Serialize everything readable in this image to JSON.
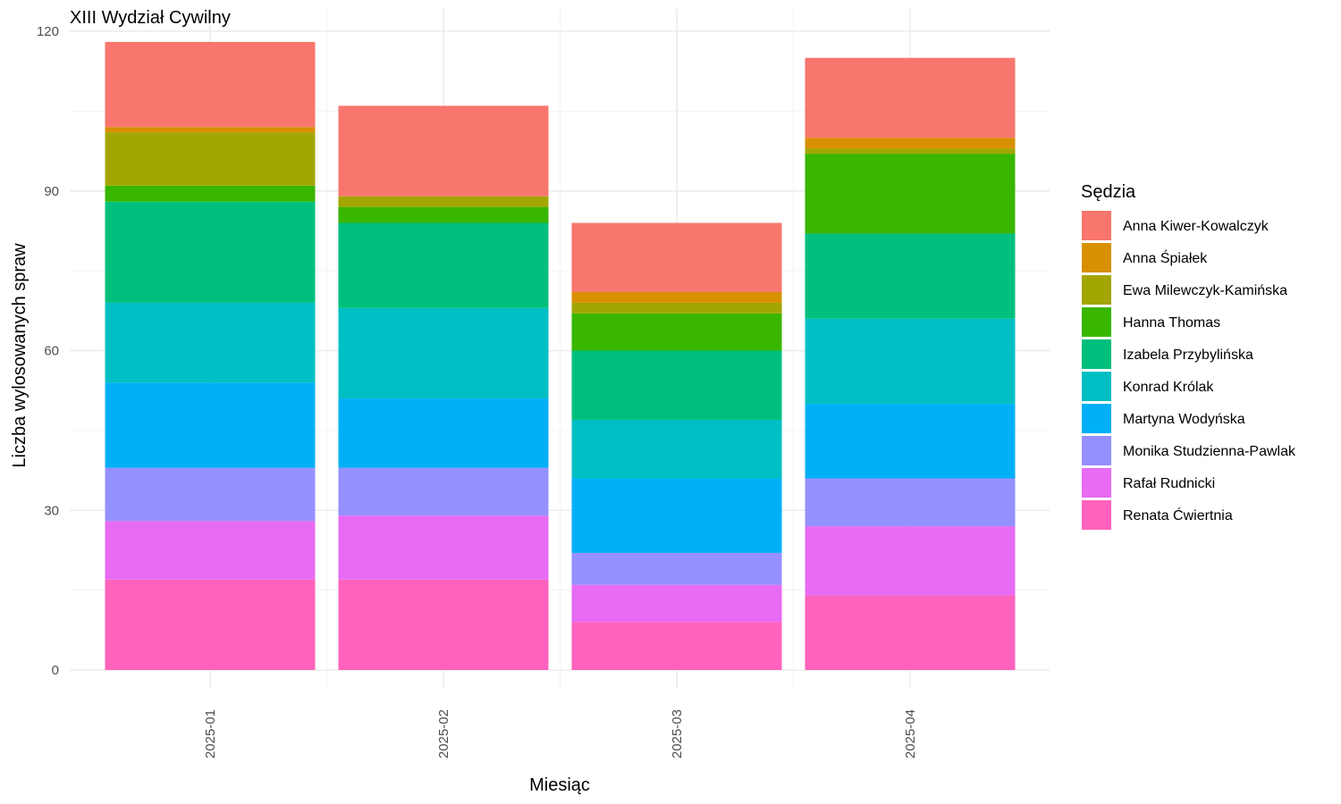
{
  "chart_data": {
    "type": "bar",
    "stacked": true,
    "title": "XIII Wydział Cywilny",
    "xlabel": "Miesiąc",
    "ylabel": "Liczba wylosowanych spraw",
    "ylim": [
      0,
      120
    ],
    "yticks": [
      0,
      30,
      60,
      90,
      120
    ],
    "grid": true,
    "legend_title": "Sędzia",
    "legend_position": "right",
    "categories": [
      "2025-01",
      "2025-02",
      "2025-03",
      "2025-04"
    ],
    "series": [
      {
        "name": "Anna Kiwer-Kowalczyk",
        "color": "#F8766D",
        "values": [
          16,
          17,
          13,
          15
        ]
      },
      {
        "name": "Anna Śpiałek",
        "color": "#D89000",
        "values": [
          1,
          0,
          2,
          2
        ]
      },
      {
        "name": "Ewa Milewczyk-Kamińska",
        "color": "#A3A500",
        "values": [
          10,
          2,
          2,
          1
        ]
      },
      {
        "name": "Hanna Thomas",
        "color": "#39B600",
        "values": [
          3,
          3,
          7,
          15
        ]
      },
      {
        "name": "Izabela Przybylińska",
        "color": "#00BF7D",
        "values": [
          19,
          16,
          13,
          16
        ]
      },
      {
        "name": "Konrad Królak",
        "color": "#00BFC4",
        "values": [
          15,
          17,
          11,
          16
        ]
      },
      {
        "name": "Martyna Wodyńska",
        "color": "#00B0F6",
        "values": [
          16,
          13,
          14,
          14
        ]
      },
      {
        "name": "Monika Studzienna-Pawlak",
        "color": "#9590FF",
        "values": [
          10,
          9,
          6,
          9
        ]
      },
      {
        "name": "Rafał Rudnicki",
        "color": "#E76BF3",
        "values": [
          11,
          12,
          7,
          13
        ]
      },
      {
        "name": "Renata Ćwiertnia",
        "color": "#FF62BC",
        "values": [
          17,
          17,
          9,
          14
        ]
      }
    ]
  }
}
